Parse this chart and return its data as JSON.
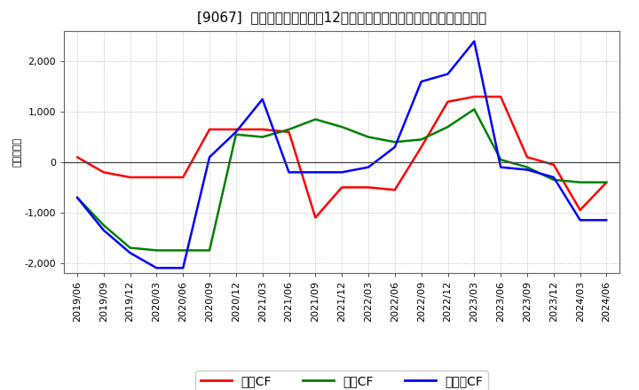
{
  "title": "[9067]  キャッシュフローの12か月移動合計の対前年同期増減額の推移",
  "ylabel": "（百万円）",
  "background_color": "#ffffff",
  "plot_background_color": "#ffffff",
  "grid_color": "#999999",
  "x_labels": [
    "2019/06",
    "2019/09",
    "2019/12",
    "2020/03",
    "2020/06",
    "2020/09",
    "2020/12",
    "2021/03",
    "2021/06",
    "2021/09",
    "2021/12",
    "2022/03",
    "2022/06",
    "2022/09",
    "2022/12",
    "2023/03",
    "2023/06",
    "2023/09",
    "2023/12",
    "2024/03",
    "2024/06"
  ],
  "series": {
    "営業CF": {
      "color": "#ff0000",
      "values": [
        100,
        -200,
        -300,
        -300,
        -300,
        650,
        650,
        650,
        600,
        -1100,
        -500,
        -500,
        -550,
        300,
        1200,
        1300,
        1300,
        100,
        -50,
        -950,
        -400
      ]
    },
    "投資CF": {
      "color": "#008000",
      "values": [
        -700,
        -1250,
        -1700,
        -1750,
        -1750,
        -1750,
        550,
        500,
        650,
        850,
        700,
        500,
        400,
        450,
        700,
        1050,
        50,
        -100,
        -350,
        -400,
        -400
      ]
    },
    "フリーCF": {
      "color": "#0000ff",
      "values": [
        -700,
        -1350,
        -1800,
        -2100,
        -2100,
        100,
        600,
        1250,
        -200,
        -200,
        -200,
        -100,
        300,
        1600,
        1750,
        2400,
        -100,
        -150,
        -300,
        -1150,
        -1150
      ]
    }
  },
  "ylim": [
    -2200,
    2600
  ],
  "yticks": [
    -2000,
    -1000,
    0,
    1000,
    2000
  ],
  "legend_labels": [
    "営業CF",
    "投資CF",
    "フリーCF"
  ],
  "legend_colors": [
    "#ff0000",
    "#008000",
    "#0000ff"
  ],
  "title_fontsize": 11,
  "axis_fontsize": 8,
  "legend_fontsize": 10,
  "linewidth": 1.8
}
